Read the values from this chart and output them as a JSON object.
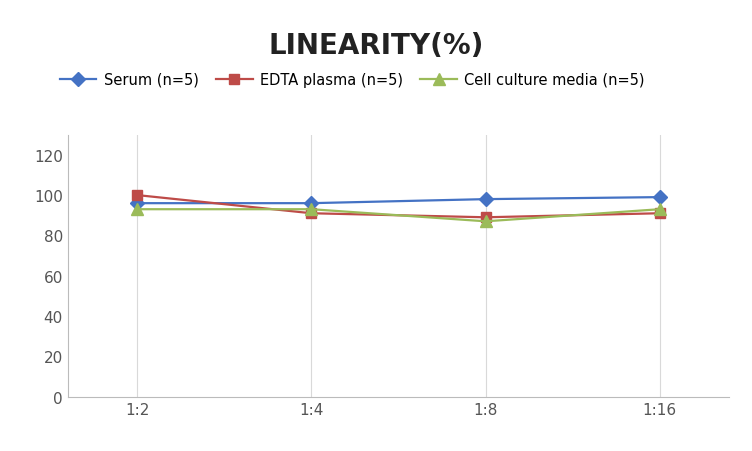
{
  "title": "LINEARITY(%)",
  "x_labels": [
    "1:2",
    "1:4",
    "1:8",
    "1:16"
  ],
  "x_positions": [
    0,
    1,
    2,
    3
  ],
  "series": [
    {
      "label": "Serum (n=5)",
      "values": [
        96,
        96,
        98,
        99
      ],
      "color": "#4472C4",
      "marker": "D",
      "marker_size": 7,
      "linewidth": 1.6
    },
    {
      "label": "EDTA plasma (n=5)",
      "values": [
        100,
        91,
        89,
        91
      ],
      "color": "#BE4B48",
      "marker": "s",
      "marker_size": 7,
      "linewidth": 1.6
    },
    {
      "label": "Cell culture media (n=5)",
      "values": [
        93,
        93,
        87,
        93
      ],
      "color": "#9BBB59",
      "marker": "^",
      "marker_size": 8,
      "linewidth": 1.6
    }
  ],
  "ylim": [
    0,
    130
  ],
  "yticks": [
    0,
    20,
    40,
    60,
    80,
    100,
    120
  ],
  "background_color": "#FFFFFF",
  "grid_color": "#D9D9D9",
  "title_fontsize": 20,
  "legend_fontsize": 10.5,
  "tick_fontsize": 11
}
